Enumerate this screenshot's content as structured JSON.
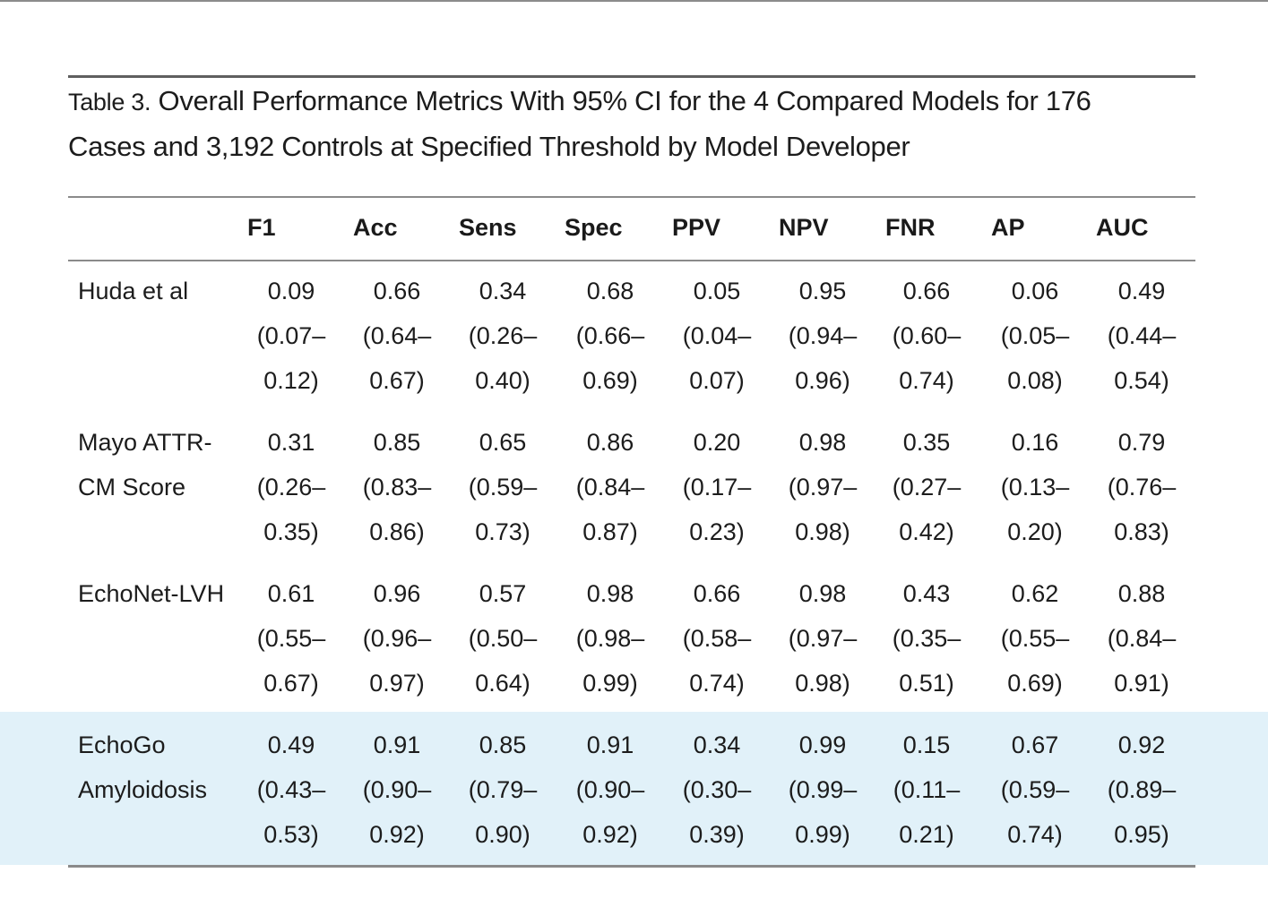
{
  "table": {
    "label": "Table 3.",
    "caption_line1": "Overall Performance Metrics With 95% CI for the 4 Compared Models for 176",
    "caption_line2": "Cases and 3,192 Controls at Specified Threshold by Model Developer",
    "columns": [
      "F1",
      "Acc",
      "Sens",
      "Spec",
      "PPV",
      "NPV",
      "FNR",
      "AP",
      "AUC"
    ],
    "highlight_color": "#e1f1f9",
    "rows": [
      {
        "model_line1": "Huda et al",
        "model_line2": "",
        "values": [
          {
            "point": "0.09",
            "lo": "(0.07–",
            "hi": "0.12)"
          },
          {
            "point": "0.66",
            "lo": "(0.64–",
            "hi": "0.67)"
          },
          {
            "point": "0.34",
            "lo": "(0.26–",
            "hi": "0.40)"
          },
          {
            "point": "0.68",
            "lo": "(0.66–",
            "hi": "0.69)"
          },
          {
            "point": "0.05",
            "lo": "(0.04–",
            "hi": "0.07)"
          },
          {
            "point": "0.95",
            "lo": "(0.94–",
            "hi": "0.96)"
          },
          {
            "point": "0.66",
            "lo": "(0.60–",
            "hi": "0.74)"
          },
          {
            "point": "0.06",
            "lo": "(0.05–",
            "hi": "0.08)"
          },
          {
            "point": "0.49",
            "lo": "(0.44–",
            "hi": "0.54)"
          }
        ]
      },
      {
        "model_line1": "Mayo ATTR-",
        "model_line2": "CM Score",
        "values": [
          {
            "point": "0.31",
            "lo": "(0.26–",
            "hi": "0.35)"
          },
          {
            "point": "0.85",
            "lo": "(0.83–",
            "hi": "0.86)"
          },
          {
            "point": "0.65",
            "lo": "(0.59–",
            "hi": "0.73)"
          },
          {
            "point": "0.86",
            "lo": "(0.84–",
            "hi": "0.87)"
          },
          {
            "point": "0.20",
            "lo": "(0.17–",
            "hi": "0.23)"
          },
          {
            "point": "0.98",
            "lo": "(0.97–",
            "hi": "0.98)"
          },
          {
            "point": "0.35",
            "lo": "(0.27–",
            "hi": "0.42)"
          },
          {
            "point": "0.16",
            "lo": "(0.13–",
            "hi": "0.20)"
          },
          {
            "point": "0.79",
            "lo": "(0.76–",
            "hi": "0.83)"
          }
        ]
      },
      {
        "model_line1": "EchoNet-LVH",
        "model_line2": "",
        "values": [
          {
            "point": "0.61",
            "lo": "(0.55–",
            "hi": "0.67)"
          },
          {
            "point": "0.96",
            "lo": "(0.96–",
            "hi": "0.97)"
          },
          {
            "point": "0.57",
            "lo": "(0.50–",
            "hi": "0.64)"
          },
          {
            "point": "0.98",
            "lo": "(0.98–",
            "hi": "0.99)"
          },
          {
            "point": "0.66",
            "lo": "(0.58–",
            "hi": "0.74)"
          },
          {
            "point": "0.98",
            "lo": "(0.97–",
            "hi": "0.98)"
          },
          {
            "point": "0.43",
            "lo": "(0.35–",
            "hi": "0.51)"
          },
          {
            "point": "0.62",
            "lo": "(0.55–",
            "hi": "0.69)"
          },
          {
            "point": "0.88",
            "lo": "(0.84–",
            "hi": "0.91)"
          }
        ]
      },
      {
        "model_line1": "EchoGo",
        "model_line2": "Amyloidosis",
        "values": [
          {
            "point": "0.49",
            "lo": "(0.43–",
            "hi": "0.53)"
          },
          {
            "point": "0.91",
            "lo": "(0.90–",
            "hi": "0.92)"
          },
          {
            "point": "0.85",
            "lo": "(0.79–",
            "hi": "0.90)"
          },
          {
            "point": "0.91",
            "lo": "(0.90–",
            "hi": "0.92)"
          },
          {
            "point": "0.34",
            "lo": "(0.30–",
            "hi": "0.39)"
          },
          {
            "point": "0.99",
            "lo": "(0.99–",
            "hi": "0.99)"
          },
          {
            "point": "0.15",
            "lo": "(0.11–",
            "hi": "0.21)"
          },
          {
            "point": "0.67",
            "lo": "(0.59–",
            "hi": "0.74)"
          },
          {
            "point": "0.92",
            "lo": "(0.89–",
            "hi": "0.95)"
          }
        ]
      }
    ]
  }
}
